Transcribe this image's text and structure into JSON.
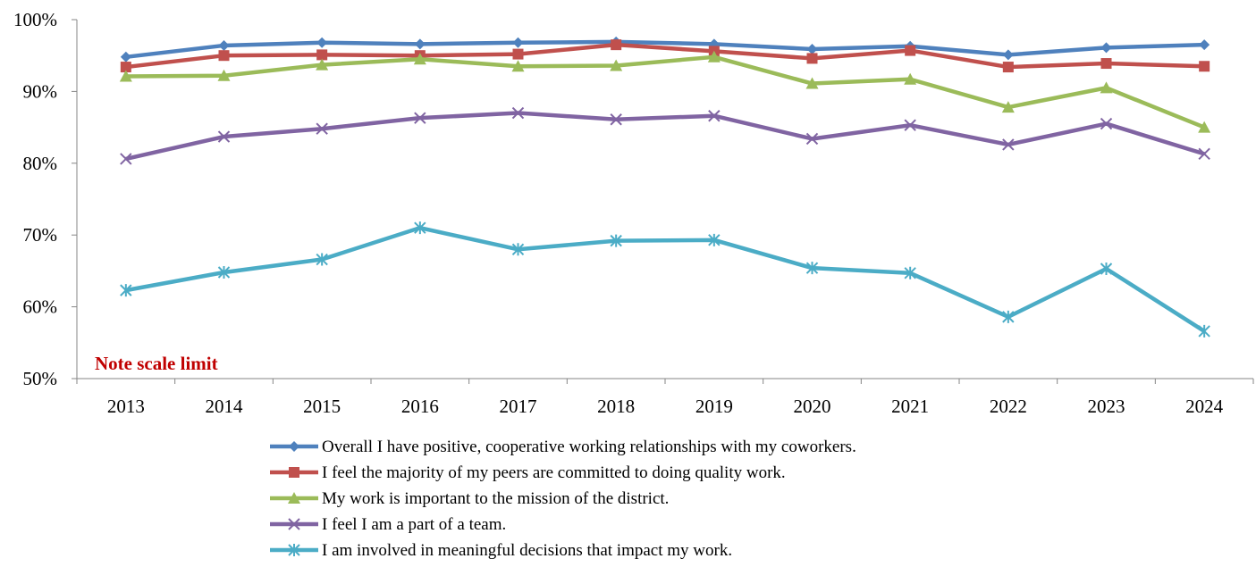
{
  "chart_data": {
    "type": "line",
    "title": "",
    "xlabel": "",
    "ylabel": "",
    "x": [
      "2013",
      "2014",
      "2015",
      "2016",
      "2017",
      "2018",
      "2019",
      "2020",
      "2021",
      "2022",
      "2023",
      "2024"
    ],
    "ylim": [
      50,
      100
    ],
    "yticks": [
      "50%",
      "60%",
      "70%",
      "80%",
      "90%",
      "100%"
    ],
    "grid": false,
    "legend_position": "bottom",
    "annotation": {
      "text": "Note scale limit",
      "color": "#c00000"
    },
    "series": [
      {
        "name": "Overall I have positive, cooperative working relationships with my coworkers.",
        "color": "#4f81bd",
        "marker": "diamond",
        "values": [
          94.8,
          96.4,
          96.8,
          96.6,
          96.8,
          96.9,
          96.6,
          95.9,
          96.3,
          95.1,
          96.1,
          96.5
        ]
      },
      {
        "name": "I feel the majority of my peers are committed to doing quality work.",
        "color": "#c0504d",
        "marker": "square",
        "values": [
          93.4,
          95.0,
          95.1,
          95.0,
          95.2,
          96.5,
          95.6,
          94.6,
          95.7,
          93.4,
          93.9,
          93.5
        ]
      },
      {
        "name": "My work is important to the mission of the district.",
        "color": "#9bbb59",
        "marker": "triangle",
        "values": [
          92.1,
          92.2,
          93.7,
          94.5,
          93.5,
          93.6,
          94.8,
          91.1,
          91.7,
          87.8,
          90.5,
          85.0
        ]
      },
      {
        "name": "I feel I am a part of a team.",
        "color": "#8064a2",
        "marker": "x",
        "values": [
          80.6,
          83.7,
          84.8,
          86.3,
          87.0,
          86.1,
          86.6,
          83.4,
          85.3,
          82.6,
          85.5,
          81.3
        ]
      },
      {
        "name": "I am involved in meaningful decisions that impact my work.",
        "color": "#4bacc6",
        "marker": "star",
        "values": [
          62.3,
          64.8,
          66.6,
          71.0,
          68.0,
          69.2,
          69.3,
          65.4,
          64.7,
          58.6,
          65.3,
          56.6
        ]
      }
    ]
  }
}
